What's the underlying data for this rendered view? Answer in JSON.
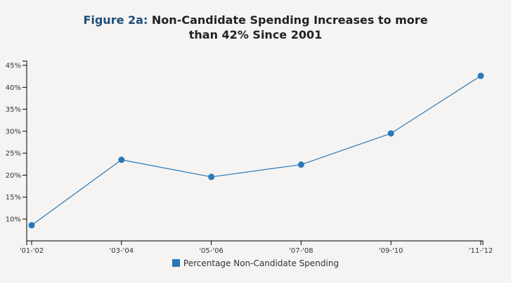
{
  "chart_data": {
    "type": "line",
    "title_prefix": "Figure 2a:",
    "title_line1": " Non-Candidate Spending Increases to more",
    "title_line2": "than 42% Since 2001",
    "xlabel": "",
    "ylabel": "",
    "categories": [
      "'01-'02",
      "'03-'04",
      "'05-'06",
      "'07-'08",
      "'09-'10",
      "'11-'12"
    ],
    "series": [
      {
        "name": "Percentage Non-Candidate Spending",
        "values": [
          8.6,
          23.5,
          19.6,
          22.4,
          29.5,
          42.6
        ],
        "color": "#2a78b7"
      }
    ],
    "ylim": [
      5,
      46
    ],
    "yticks": [
      10,
      15,
      20,
      25,
      30,
      35,
      40,
      45
    ],
    "ytick_format": "%",
    "grid": false,
    "legend_position": "bottom-center"
  }
}
